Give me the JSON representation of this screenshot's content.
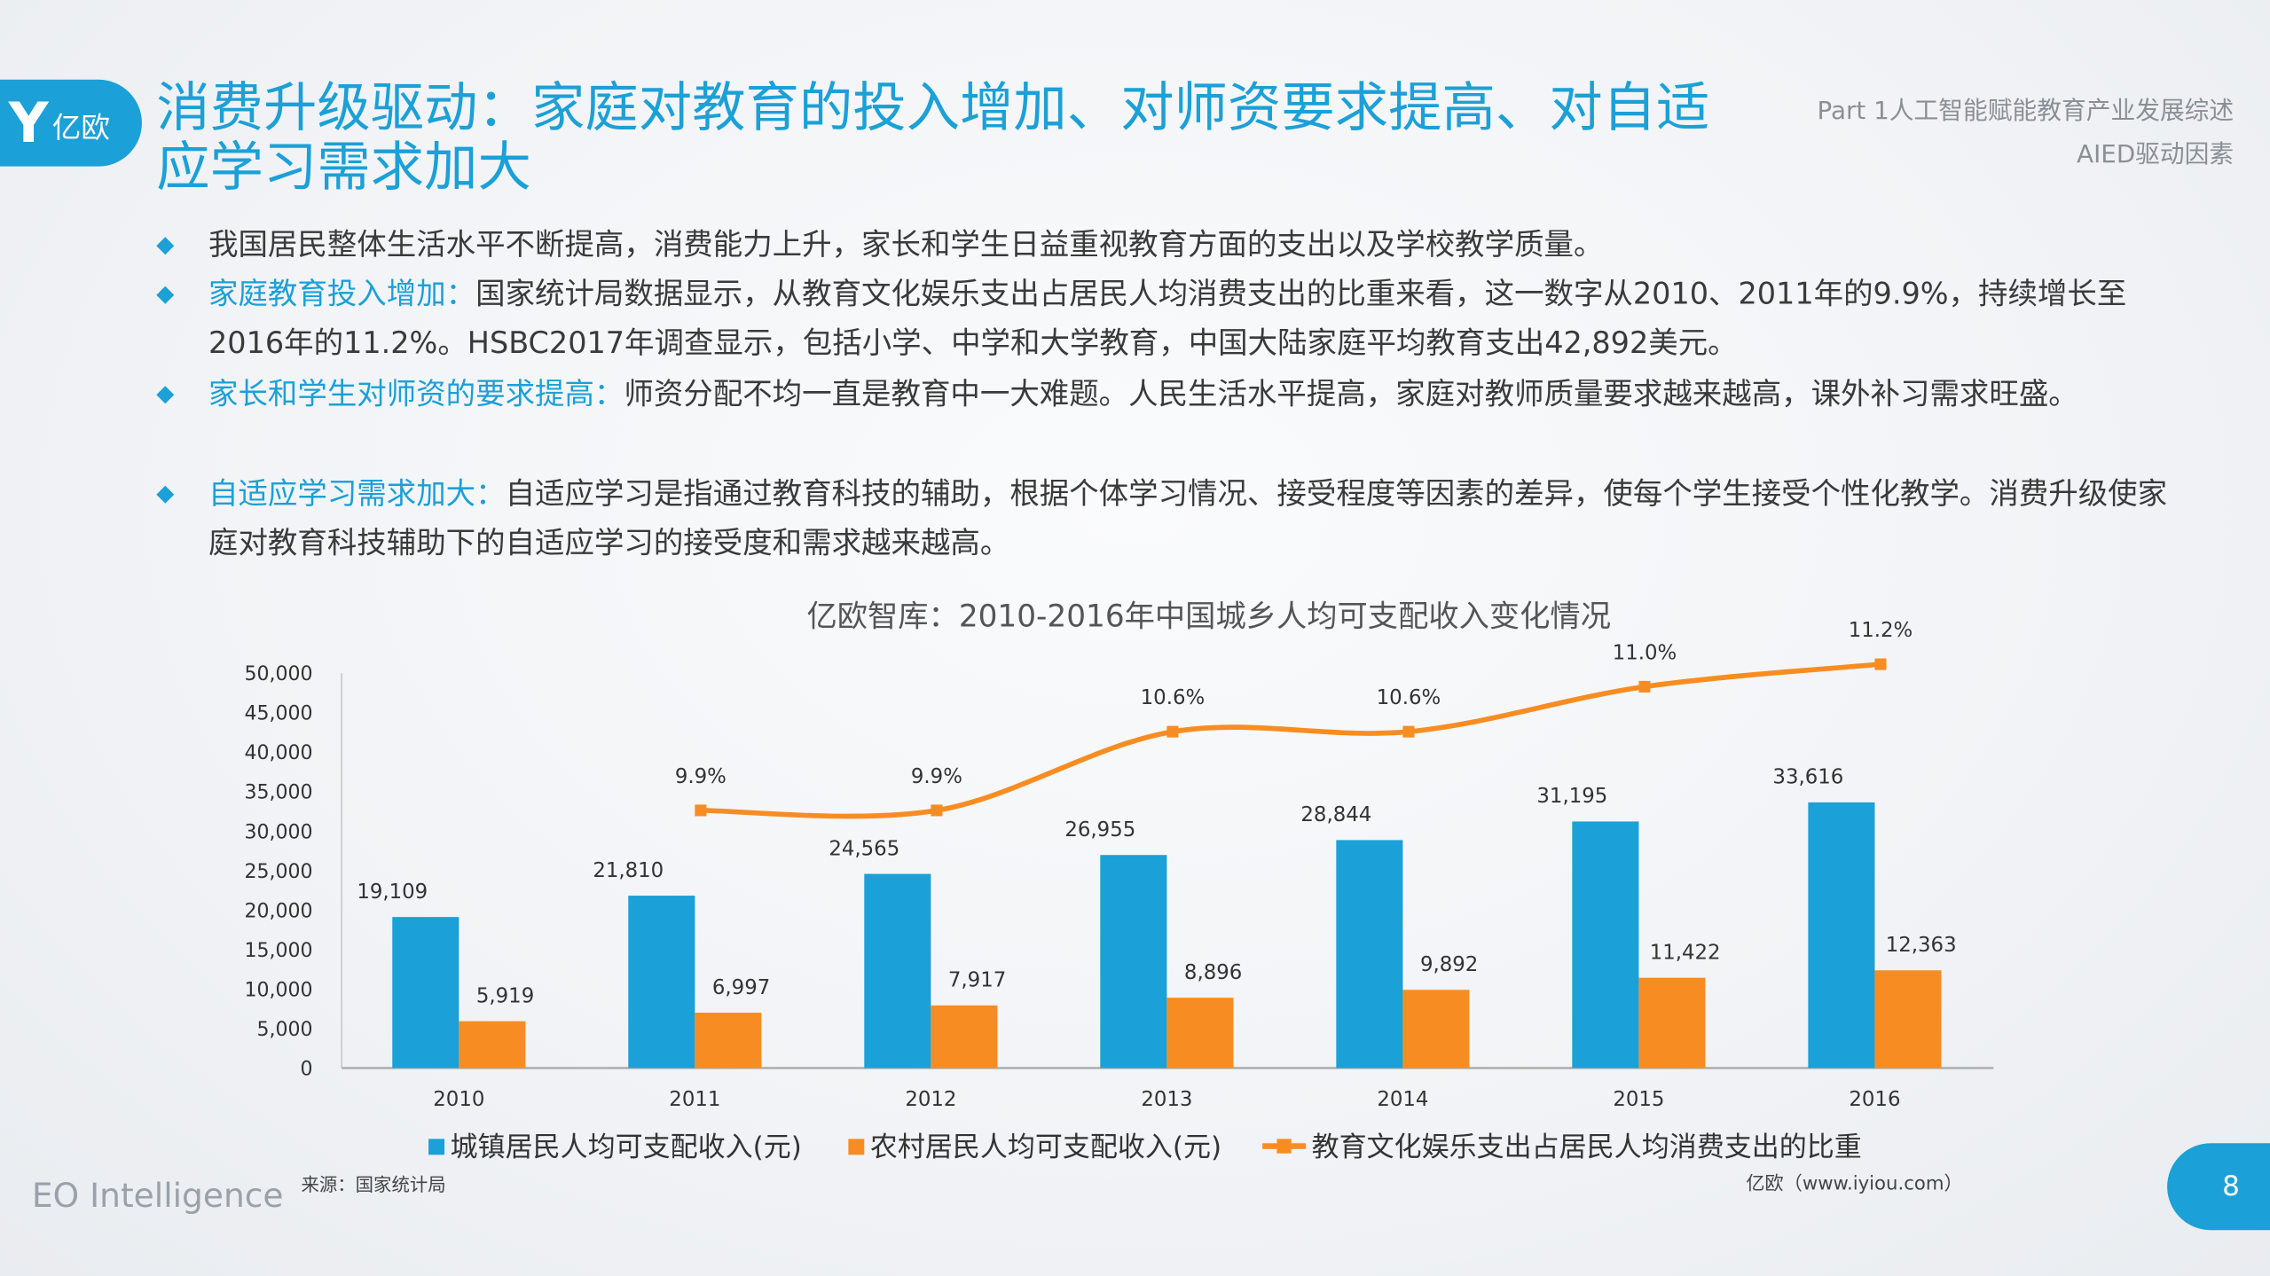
{
  "header": {
    "logo_glyph": "Y",
    "logo_text": "亿欧",
    "title": "消费升级驱动：家庭对教育的投入增加、对师资要求提高、对自适应学习需求加大",
    "part": "Part 1人工智能赋能教育产业发展综述",
    "section": "AIED驱动因素"
  },
  "bullets": [
    {
      "highlight": "",
      "text": "我国居民整体生活水平不断提高，消费能力上升，家长和学生日益重视教育方面的支出以及学校教学质量。"
    },
    {
      "highlight": "家庭教育投入增加：",
      "text": "国家统计局数据显示，从教育文化娱乐支出占居民人均消费支出的比重来看，这一数字从2010、2011年的9.9%，持续增长至2016年的11.2%。HSBC2017年调查显示，包括小学、中学和大学教育，中国大陆家庭平均教育支出42,892美元。"
    },
    {
      "highlight": "家长和学生对师资的要求提高：",
      "text": "师资分配不均一直是教育中一大难题。人民生活水平提高，家庭对教师质量要求越来越高，课外补习需求旺盛。"
    },
    {
      "highlight": "自适应学习需求加大：",
      "text": "自适应学习是指通过教育科技的辅助，根据个体学习情况、接受程度等因素的差异，使每个学生接受个性化教学。消费升级使家庭对教育科技辅助下的自适应学习的接受度和需求越来越高。"
    }
  ],
  "chart_data": {
    "type": "bar",
    "title": "亿欧智库：2010-2016年中国城乡人均可支配收入变化情况",
    "categories": [
      "2010",
      "2011",
      "2012",
      "2013",
      "2014",
      "2015",
      "2016"
    ],
    "ylim": [
      0,
      50000
    ],
    "yticks": [
      "0",
      "5,000",
      "10,000",
      "15,000",
      "20,000",
      "25,000",
      "30,000",
      "35,000",
      "40,000",
      "45,000",
      "50,000"
    ],
    "grid": false,
    "legend_placement": "bottom",
    "series": [
      {
        "name": "城镇居民人均可支配收入(元)",
        "type": "bar",
        "color": "#1ba0d7",
        "values": [
          19109,
          21810,
          24565,
          26955,
          28844,
          31195,
          33616
        ],
        "labels": [
          "19,109",
          "21,810",
          "24,565",
          "26,955",
          "28,844",
          "31,195",
          "33,616"
        ]
      },
      {
        "name": "农村居民人均可支配收入(元)",
        "type": "bar",
        "color": "#f78d22",
        "values": [
          5919,
          6997,
          7917,
          8896,
          9892,
          11422,
          12363
        ],
        "labels": [
          "5,919",
          "6,997",
          "7,917",
          "8,896",
          "9,892",
          "11,422",
          "12,363"
        ]
      },
      {
        "name": "教育文化娱乐支出占居民人均消费支出的比重",
        "type": "line",
        "axis": "secondary",
        "unit": "%",
        "color": "#f78d22",
        "values": [
          null,
          9.9,
          9.9,
          10.6,
          10.6,
          11.0,
          11.2
        ],
        "labels": [
          "",
          "9.9%",
          "9.9%",
          "10.6%",
          "10.6%",
          "11.0%",
          "11.2%"
        ]
      }
    ]
  },
  "footer": {
    "brand": "EO Intelligence",
    "source": "来源：国家统计局",
    "site": "亿欧（www.iyiou.com）",
    "page": "8"
  }
}
